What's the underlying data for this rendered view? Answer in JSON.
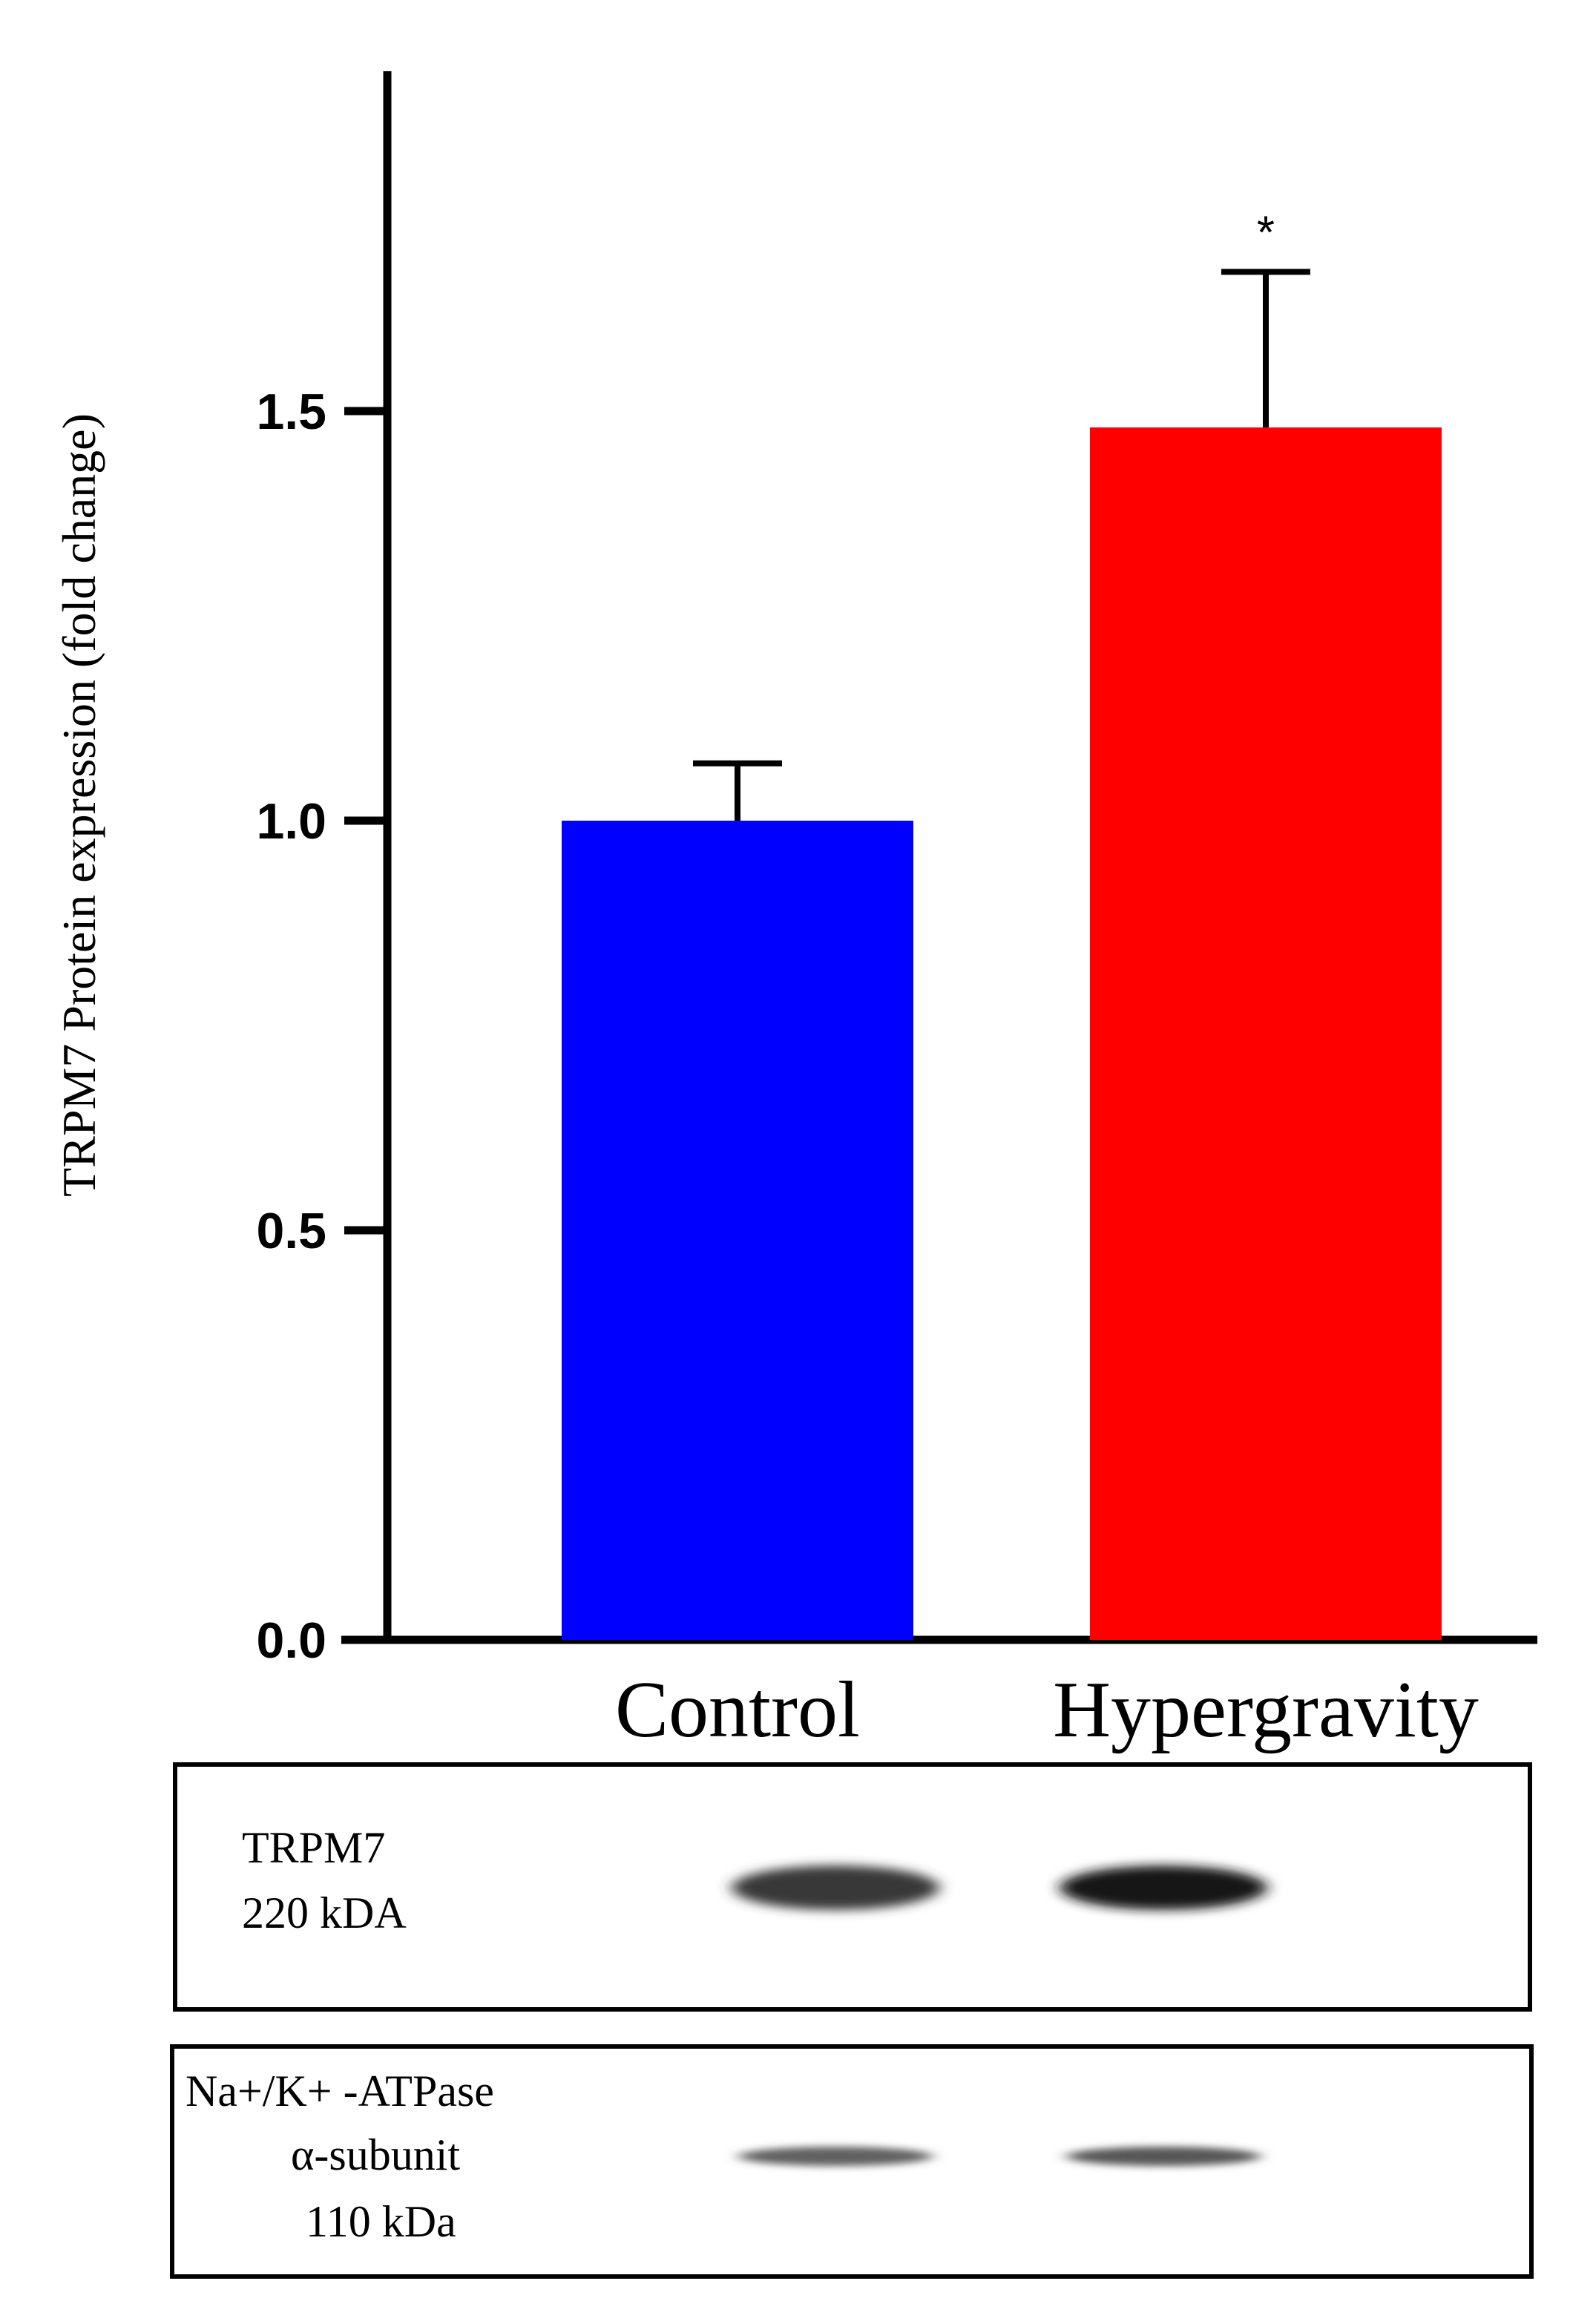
{
  "chart_data": {
    "type": "bar",
    "categories": [
      "Control",
      "Hypergravity"
    ],
    "values": [
      1.0,
      1.48
    ],
    "errors": [
      0.07,
      0.19
    ],
    "colors": [
      "#0000ff",
      "#ff0000"
    ],
    "significance": [
      "",
      "*"
    ],
    "title": "",
    "xlabel": "",
    "ylabel": "TRPM7 Protein expression (fold change)",
    "ylim": [
      0,
      1.9
    ],
    "yticks": [
      0.0,
      0.5,
      1.0,
      1.5
    ],
    "ytick_labels": [
      "0.0",
      "0.5",
      "1.0",
      "1.5"
    ]
  },
  "blots": [
    {
      "label_lines": [
        "TRPM7",
        "220 kDA"
      ],
      "bands": [
        {
          "lane": "Control",
          "intensity": 0.78
        },
        {
          "lane": "Hypergravity",
          "intensity": 0.92
        }
      ]
    },
    {
      "label_lines": [
        "Na+/K+ -ATPase",
        "α-subunit",
        "110 kDa"
      ],
      "bands": [
        {
          "lane": "Control",
          "intensity": 0.62
        },
        {
          "lane": "Hypergravity",
          "intensity": 0.66
        }
      ]
    }
  ]
}
